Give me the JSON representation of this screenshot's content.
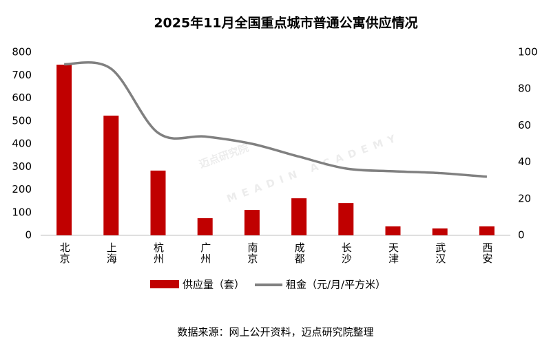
{
  "chart_data": {
    "type": "bar_line",
    "title": "2025年11月全国重点城市普通公寓供应情况",
    "categories": [
      "北京",
      "上海",
      "杭州",
      "广州",
      "南京",
      "成都",
      "长沙",
      "天津",
      "武汉",
      "西安"
    ],
    "series": [
      {
        "name": "供应量（套）",
        "type": "bar",
        "color": "#c00000",
        "values": [
          746,
          523,
          283,
          75,
          111,
          162,
          141,
          39,
          30,
          39
        ]
      },
      {
        "name": "租金（元/月/平方米）",
        "type": "line",
        "axis": "y2",
        "color": "#808080",
        "values": [
          93.5,
          91,
          56,
          54,
          50,
          43,
          36.5,
          35,
          34,
          32
        ]
      }
    ],
    "ylim": [
      0,
      800
    ],
    "yticks": [
      0,
      100,
      200,
      300,
      400,
      500,
      600,
      700,
      800
    ],
    "y2lim": [
      0,
      100
    ],
    "y2ticks": [
      0,
      20,
      40,
      60,
      80,
      100
    ],
    "legend": "bottom",
    "source": "数据来源：网上公开资料，迈点研究院整理",
    "watermark": "迈点研究院",
    "watermark_sub": "MEADIN ACADEMY"
  }
}
